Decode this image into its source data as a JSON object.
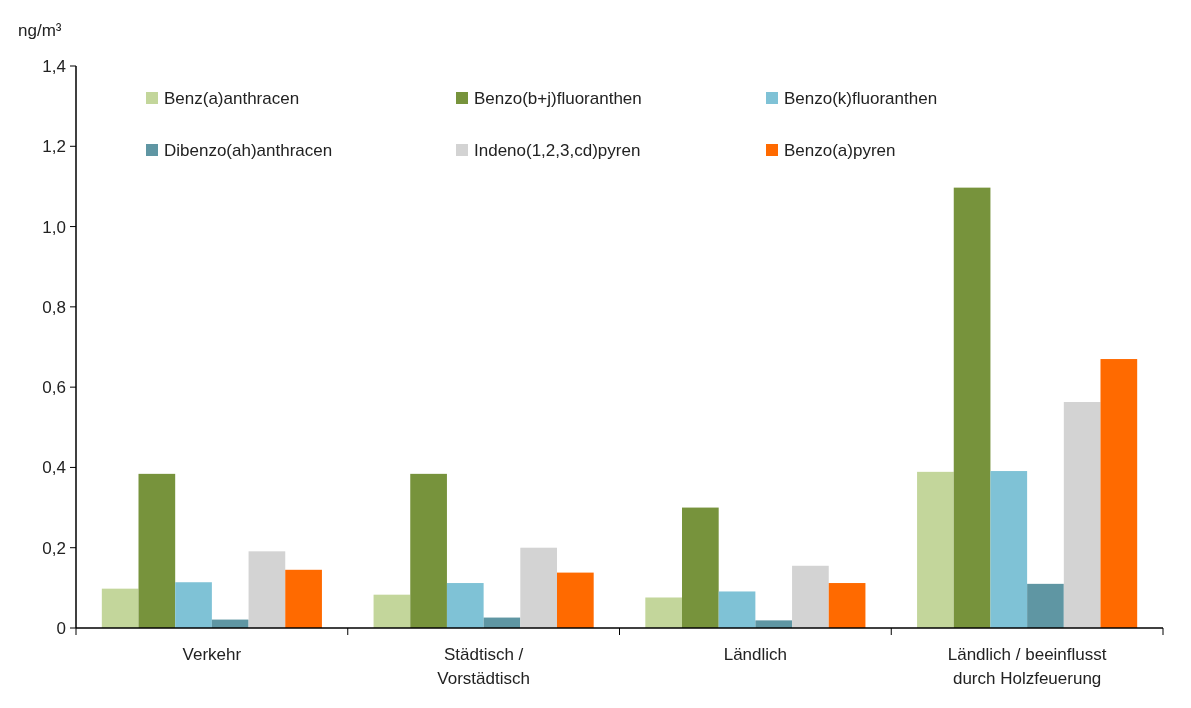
{
  "chart_data": {
    "type": "bar",
    "ylabel": "ng/m³",
    "categories": [
      "Verkehr",
      "Städtisch /\nVorstädtisch",
      "Ländlich",
      "Ländlich / beeinflusst\ndurch Holzfeuerung"
    ],
    "series": [
      {
        "name": "Benz(a)anthracen",
        "color": "#c3d69b",
        "values": [
          0.098,
          0.083,
          0.076,
          0.389
        ]
      },
      {
        "name": "Benzo(b+j)fluoranthen",
        "color": "#77933c",
        "values": [
          0.384,
          0.384,
          0.3,
          1.097
        ]
      },
      {
        "name": "Benzo(k)fluoranthen",
        "color": "#7fc2d6",
        "values": [
          0.114,
          0.112,
          0.091,
          0.391
        ]
      },
      {
        "name": "Dibenzo(ah)anthracen",
        "color": "#5f96a3",
        "values": [
          0.021,
          0.026,
          0.019,
          0.11
        ]
      },
      {
        "name": "Indeno(1,2,3,cd)pyren",
        "color": "#d3d3d3",
        "values": [
          0.191,
          0.2,
          0.155,
          0.563
        ]
      },
      {
        "name": "Benzo(a)pyren",
        "color": "#ff6a00",
        "values": [
          0.145,
          0.138,
          0.112,
          0.67
        ]
      }
    ],
    "ylim": [
      0,
      1.4
    ],
    "yticks": [
      0,
      {
        "value": 0.2,
        "label": "0,2"
      },
      {
        "value": 0.4,
        "label": "0,4"
      },
      {
        "value": 0.6,
        "label": "0,6"
      },
      {
        "value": 0.8,
        "label": "0,8"
      },
      {
        "value": 1.0,
        "label": "1,0"
      },
      {
        "value": 1.2,
        "label": "1,2"
      },
      {
        "value": 1.4,
        "label": "1,4"
      }
    ],
    "grid": false,
    "legend": "top left"
  }
}
